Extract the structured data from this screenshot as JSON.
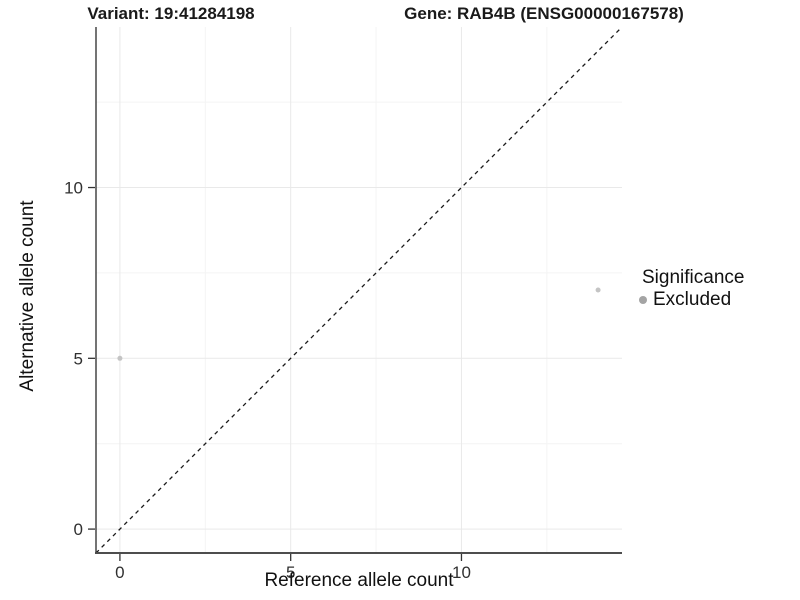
{
  "header": {
    "variant_title": "Variant: 19:41284198",
    "gene_title": "Gene: RAB4B (ENSG00000167578)"
  },
  "chart_data": {
    "type": "scatter",
    "xlabel": "Reference allele count",
    "ylabel": "Alternative allele count",
    "xlim": [
      -0.7,
      14.7
    ],
    "ylim": [
      -0.7,
      14.7
    ],
    "x_ticks": [
      0,
      5,
      10
    ],
    "y_ticks": [
      0,
      5,
      10
    ],
    "x_minor_ticks": [
      2.5,
      7.5,
      12.5
    ],
    "y_minor_ticks": [
      2.5,
      7.5,
      12.5
    ],
    "grid": true,
    "identity_line": {
      "slope": 1,
      "intercept": 0,
      "style": "dashed",
      "color": "#1a1a1a"
    },
    "series": [
      {
        "name": "Excluded",
        "point_color": "#c4c4c4",
        "point_radius": 2.5,
        "points": [
          {
            "x": 0,
            "y": 5
          },
          {
            "x": 14,
            "y": 7
          }
        ]
      }
    ],
    "legend": {
      "title": "Significance",
      "position": "right",
      "entries": [
        {
          "label": "Excluded",
          "color": "#a4a4a4"
        }
      ]
    },
    "colors": {
      "background": "#ffffff",
      "grid_major": "#e9e9e9",
      "grid_minor": "#f4f4f4",
      "axis_line_y": "#2a2a2a",
      "axis_line_x": "#4d4d4d",
      "tick": "#333333",
      "tick_label": "#303030"
    }
  }
}
